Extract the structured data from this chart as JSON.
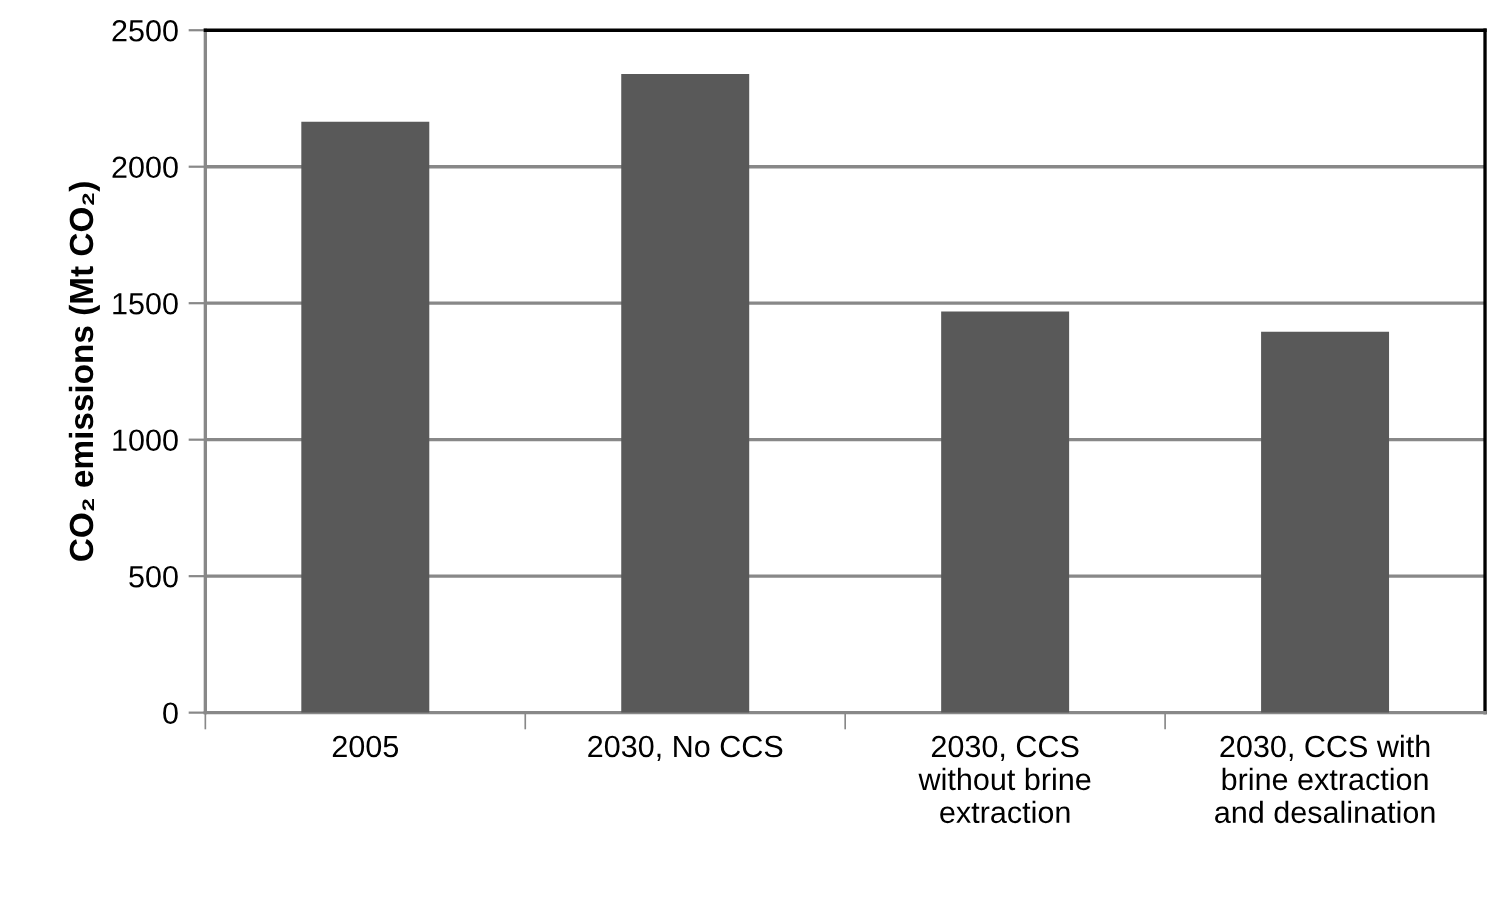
{
  "chart_data": {
    "type": "bar",
    "ylabel": "CO₂ emissions (Mt CO₂)",
    "categories": [
      "2005",
      "2030, No CCS",
      "2030, CCS\nwithout brine\nextraction",
      "2030, CCS with\nbrine extraction\nand desalination"
    ],
    "values": [
      2165,
      2340,
      1470,
      1395
    ],
    "color": "#595959",
    "ylim": [
      0,
      2500
    ],
    "yticks": [
      0,
      500,
      1000,
      1500,
      2000,
      2500
    ],
    "grid": "y",
    "legend": false
  }
}
